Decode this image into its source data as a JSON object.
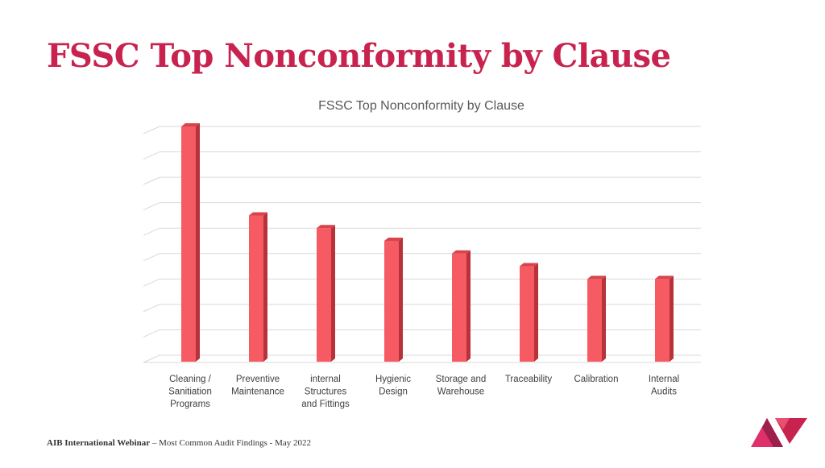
{
  "slide": {
    "title": "FSSC Top Nonconformity by Clause"
  },
  "footer": {
    "org": "AIB International Webinar",
    "rest": " – Most Common Audit Findings  - May 2022"
  },
  "colors": {
    "title": "#c8234f",
    "bar_front": "#f65a63",
    "bar_side": "#b8323a",
    "bar_top": "#d8444c",
    "grid": "#d9d9d9"
  },
  "chart_data": {
    "type": "bar",
    "title": "FSSC Top Nonconformity by Clause",
    "categories": [
      [
        "Cleaning /",
        "Sanitiation",
        "Programs"
      ],
      [
        "Preventive",
        "Maintenance"
      ],
      [
        "internal",
        "Structures",
        "and Fittings"
      ],
      [
        "Hygienic",
        "Design"
      ],
      [
        "Storage and",
        "Warehouse"
      ],
      [
        "Traceability"
      ],
      [
        "Calibration"
      ],
      [
        "Internal",
        "Audits"
      ]
    ],
    "values": [
      9,
      5.5,
      5,
      4.5,
      4,
      3.5,
      3,
      3
    ],
    "ylim": [
      0,
      9
    ],
    "grid": true,
    "legend": "none",
    "ytick_labels_shown": false
  }
}
